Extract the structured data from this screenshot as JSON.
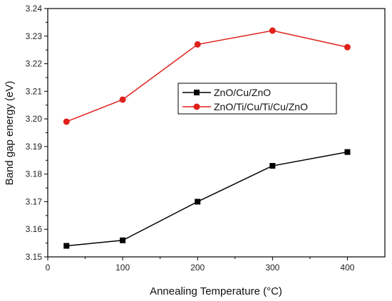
{
  "chart_data": {
    "type": "line",
    "xlabel": "Annealing Temperature (°C)",
    "ylabel": "Band gap energy (eV)",
    "xlim": [
      0,
      450
    ],
    "ylim": [
      3.15,
      3.24
    ],
    "xticks": [
      0,
      100,
      200,
      300,
      400
    ],
    "yticks": [
      3.15,
      3.16,
      3.17,
      3.18,
      3.19,
      3.2,
      3.21,
      3.22,
      3.23,
      3.24
    ],
    "xtick_labels": [
      "0",
      "100",
      "200",
      "300",
      "400"
    ],
    "ytick_labels": [
      "3.15",
      "3.16",
      "3.17",
      "3.18",
      "3.19",
      "3.20",
      "3.21",
      "3.22",
      "3.23",
      "3.24"
    ],
    "grid": false,
    "legend_position": "center-right",
    "series": [
      {
        "name": "ZnO/Cu/ZnO",
        "color": "#000000",
        "marker": "square",
        "x": [
          25,
          100,
          200,
          300,
          400
        ],
        "y": [
          3.154,
          3.156,
          3.17,
          3.183,
          3.188
        ]
      },
      {
        "name": "ZnO/Ti/Cu/Ti/Cu/ZnO",
        "color": "#e0201b",
        "marker": "circle",
        "x": [
          25,
          100,
          200,
          300,
          400
        ],
        "y": [
          3.199,
          3.207,
          3.227,
          3.232,
          3.226
        ]
      }
    ]
  }
}
